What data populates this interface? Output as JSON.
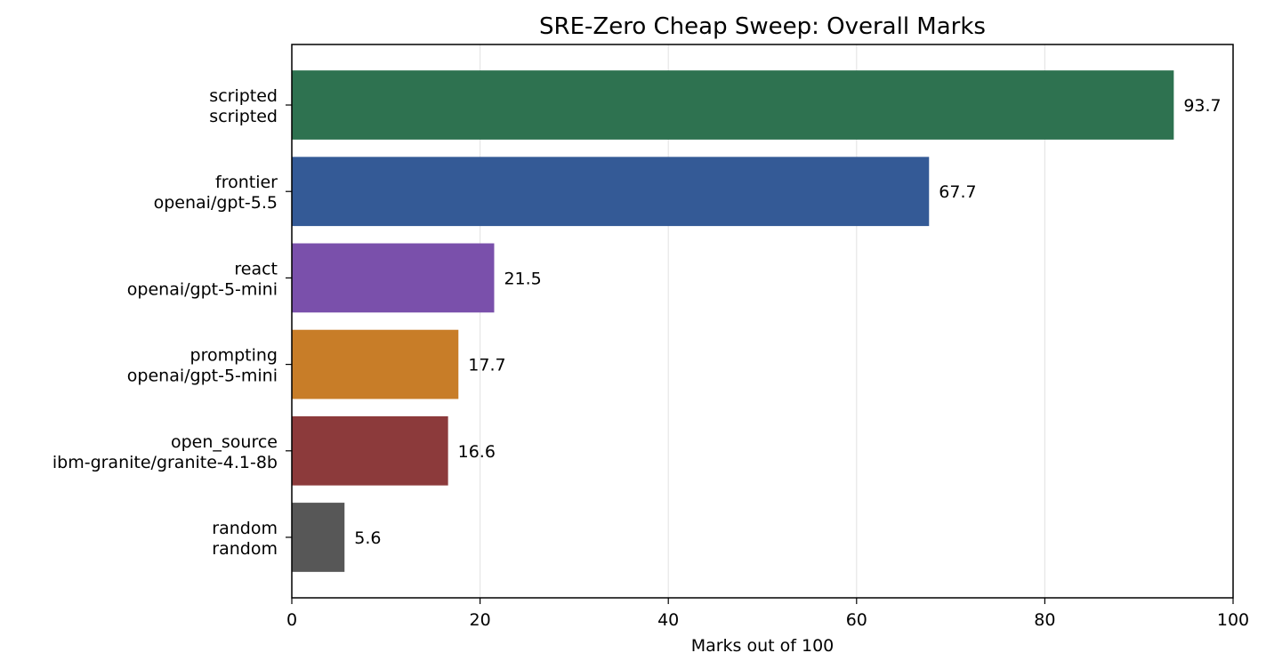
{
  "chart_data": {
    "type": "bar",
    "orientation": "horizontal",
    "title": "SRE-Zero Cheap Sweep: Overall Marks",
    "xlabel": "Marks out of 100",
    "ylabel": "",
    "xlim": [
      0,
      100
    ],
    "xticks": [
      "0",
      "20",
      "40",
      "60",
      "80",
      "100"
    ],
    "grid": "x",
    "categories": [
      {
        "line1": "scripted",
        "line2": "scripted"
      },
      {
        "line1": "frontier",
        "line2": "openai/gpt-5.5"
      },
      {
        "line1": "react",
        "line2": "openai/gpt-5-mini"
      },
      {
        "line1": "prompting",
        "line2": "openai/gpt-5-mini"
      },
      {
        "line1": "open_source",
        "line2": "ibm-granite/granite-4.1-8b"
      },
      {
        "line1": "random",
        "line2": "random"
      }
    ],
    "values": [
      93.7,
      67.7,
      21.5,
      17.7,
      16.6,
      5.6
    ],
    "value_labels": [
      "93.7",
      "67.7",
      "21.5",
      "17.7",
      "16.6",
      "5.6"
    ],
    "colors": [
      "#2e7250",
      "#345a96",
      "#7a50ab",
      "#c87d28",
      "#8c3a3b",
      "#575757"
    ]
  }
}
